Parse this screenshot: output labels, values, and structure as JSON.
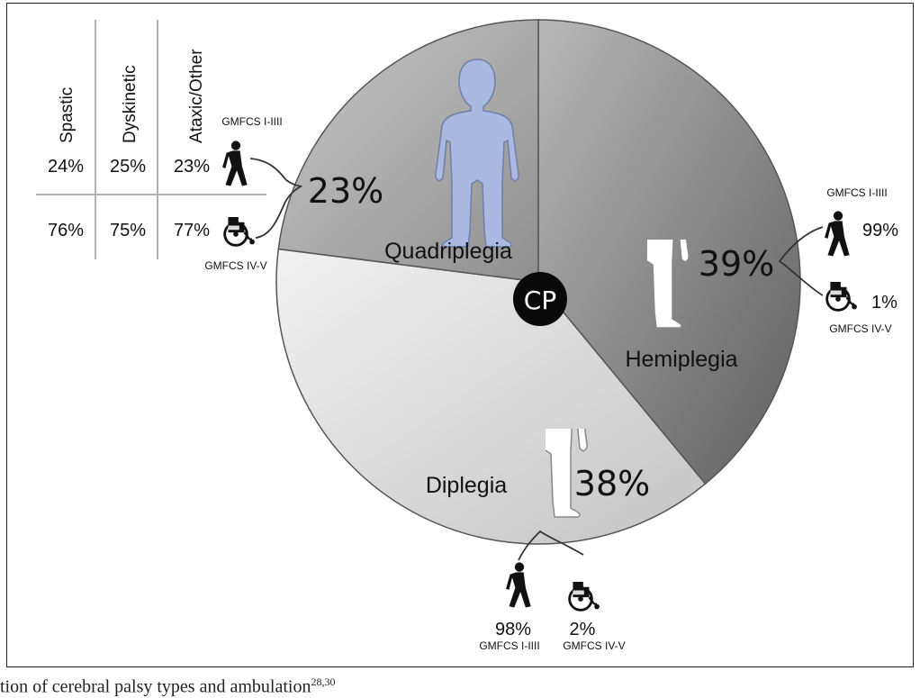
{
  "chart_data": {
    "type": "pie",
    "center_label": "CP",
    "slices": [
      {
        "name": "Hemiplegia",
        "value": 39,
        "label": "39%",
        "color": "#8c8c8c",
        "gmfcs": [
          {
            "class": "GMFCS I-IIII",
            "value": 99,
            "label": "99%"
          },
          {
            "class": "GMFCS IV-V",
            "value": 1,
            "label": "1%"
          }
        ]
      },
      {
        "name": "Diplegia",
        "value": 38,
        "label": "38%",
        "color": "#d9d9d9",
        "gmfcs": [
          {
            "class": "GMFCS I-IIII",
            "value": 98,
            "label": "98%"
          },
          {
            "class": "GMFCS IV-V",
            "value": 2,
            "label": "2%"
          }
        ]
      },
      {
        "name": "Quadriplegia",
        "value": 23,
        "label": "23%",
        "color": "#b3b3b3",
        "gmfcs": [
          {
            "class": "GMFCS I-IIII"
          },
          {
            "class": "GMFCS IV-V"
          }
        ]
      }
    ],
    "table": {
      "columns": [
        "Spastic",
        "Dyskinetic",
        "Ataxic/Other"
      ],
      "rows": [
        {
          "class": "GMFCS I-IIII",
          "values": [
            "24%",
            "25%",
            "23%"
          ]
        },
        {
          "class": "GMFCS IV-V",
          "values": [
            "76%",
            "75%",
            "77%"
          ]
        }
      ]
    }
  },
  "caption": {
    "text": "tion of cerebral palsy types and ambulation",
    "refs": "28,30"
  },
  "colors": {
    "figure_blue": "#a9b9e0",
    "dark": "#111111",
    "line": "#555555"
  }
}
